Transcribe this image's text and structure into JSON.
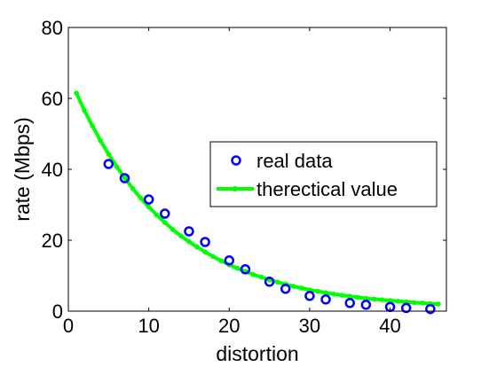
{
  "chart_data": {
    "type": "scatter",
    "xlabel": "distortion",
    "ylabel": "rate (Mbps)",
    "xlim": [
      0,
      47
    ],
    "ylim": [
      0,
      80
    ],
    "x_ticks": [
      "0",
      "10",
      "20",
      "30",
      "40"
    ],
    "y_ticks": [
      "0",
      "20",
      "40",
      "60",
      "80"
    ],
    "grid": false,
    "legend_position": "center-right",
    "series": [
      {
        "name": "real data",
        "kind": "scatter",
        "marker": "circle",
        "color": "#0000ff",
        "x": [
          5,
          7,
          10,
          12,
          15,
          17,
          20,
          22,
          25,
          27,
          30,
          32,
          35,
          37,
          40,
          42,
          45
        ],
        "y": [
          41.5,
          37.5,
          31.5,
          27.5,
          22.5,
          19.5,
          14.3,
          11.8,
          8.3,
          6.3,
          4.3,
          3.3,
          2.3,
          1.8,
          1.2,
          0.9,
          0.6
        ]
      },
      {
        "name": "therectical value",
        "kind": "line",
        "marker": "dot",
        "color": "#00ff00",
        "x": [
          1,
          2,
          3,
          4,
          5,
          6,
          7,
          8,
          9,
          10,
          11,
          12,
          13,
          14,
          15,
          16,
          17,
          18,
          19,
          20,
          21,
          22,
          23,
          24,
          25,
          26,
          27,
          28,
          29,
          30,
          31,
          32,
          33,
          34,
          35,
          36,
          37,
          38,
          39,
          40,
          41,
          42,
          43,
          44,
          45,
          46
        ],
        "y": [
          61.5,
          56.6,
          52.2,
          48.1,
          44.3,
          40.8,
          37.6,
          34.6,
          31.9,
          29.4,
          27.1,
          25.0,
          23.0,
          21.2,
          19.6,
          18.1,
          16.7,
          15.4,
          14.2,
          13.1,
          12.1,
          11.2,
          10.3,
          9.6,
          8.8,
          8.2,
          7.6,
          7.0,
          6.5,
          6.0,
          5.6,
          5.2,
          4.8,
          4.5,
          4.2,
          3.9,
          3.6,
          3.4,
          3.2,
          3.0,
          2.8,
          2.6,
          2.4,
          2.3,
          2.1,
          2.0
        ]
      }
    ]
  }
}
